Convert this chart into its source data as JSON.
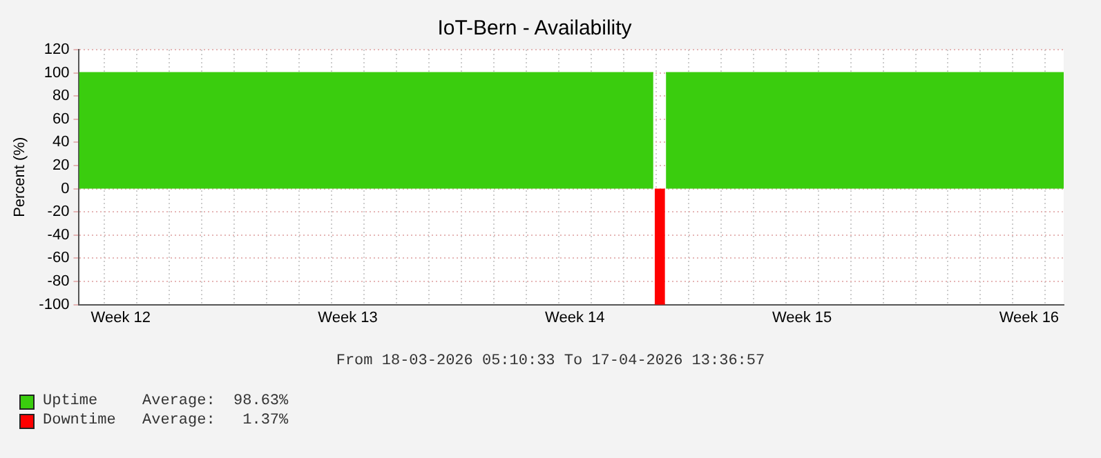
{
  "chart_data": {
    "type": "area",
    "title": "IoT-Bern - Availability",
    "ylabel": "Percent (%)",
    "annotations": [
      "From 18-03-2026 05:10:33 To 17-04-2026 13:36:57",
      "Average:  98.63%",
      "Average:   1.37%"
    ],
    "xlim": [
      "2026-03-18T05:10",
      "2026-04-17T13:36"
    ],
    "xticks": [
      {
        "value": "2026-03-19",
        "label": null
      },
      {
        "value": "2026-03-19T12:00",
        "label": "Week 12"
      },
      {
        "value": "2026-03-20",
        "label": null
      },
      {
        "value": "2026-03-21",
        "label": null
      },
      {
        "value": "2026-03-22",
        "label": null
      },
      {
        "value": "2026-03-23",
        "label": null
      },
      {
        "value": "2026-03-24",
        "label": null
      },
      {
        "value": "2026-03-25",
        "label": null
      },
      {
        "value": "2026-03-26",
        "label": null
      },
      {
        "value": "2026-03-26T12:00",
        "label": "Week 13"
      },
      {
        "value": "2026-03-27",
        "label": null
      },
      {
        "value": "2026-03-28",
        "label": null
      },
      {
        "value": "2026-03-29",
        "label": null
      },
      {
        "value": "2026-03-30",
        "label": null
      },
      {
        "value": "2026-03-31",
        "label": null
      },
      {
        "value": "2026-04-01",
        "label": null
      },
      {
        "value": "2026-04-02",
        "label": null
      },
      {
        "value": "2026-04-02T12:00",
        "label": "Week 14"
      },
      {
        "value": "2026-04-03",
        "label": null
      },
      {
        "value": "2026-04-04",
        "label": null
      },
      {
        "value": "2026-04-05",
        "label": null
      },
      {
        "value": "2026-04-06",
        "label": null
      },
      {
        "value": "2026-04-07",
        "label": null
      },
      {
        "value": "2026-04-08",
        "label": null
      },
      {
        "value": "2026-04-09",
        "label": null
      },
      {
        "value": "2026-04-09T12:00",
        "label": "Week 15"
      },
      {
        "value": "2026-04-10",
        "label": null
      },
      {
        "value": "2026-04-11",
        "label": null
      },
      {
        "value": "2026-04-12",
        "label": null
      },
      {
        "value": "2026-04-13",
        "label": null
      },
      {
        "value": "2026-04-14",
        "label": null
      },
      {
        "value": "2026-04-15",
        "label": null
      },
      {
        "value": "2026-04-16",
        "label": null
      },
      {
        "value": "2026-04-16T12:00",
        "label": "Week 16"
      },
      {
        "value": "2026-04-17",
        "label": null
      }
    ],
    "ylim": [
      -100,
      120
    ],
    "yticks": [
      -100,
      -80,
      -60,
      -40,
      -20,
      0,
      20,
      40,
      60,
      80,
      100,
      120
    ],
    "grid": true,
    "legend": "bottom left",
    "series": [
      {
        "name": "Uptime",
        "color": "#3acd0e",
        "x": [
          "2026-03-18T05:10",
          "2026-04-04T22:00",
          "2026-04-05T02:00",
          "2026-04-05T07:20",
          "2026-04-17T13:36"
        ],
        "values": [
          100,
          100,
          null,
          100,
          100
        ]
      },
      {
        "name": "Downtime",
        "color": "#ff0000",
        "x": [
          "2026-04-04T23:00",
          "2026-04-05T06:40"
        ],
        "values": [
          -100,
          -100
        ]
      }
    ]
  }
}
